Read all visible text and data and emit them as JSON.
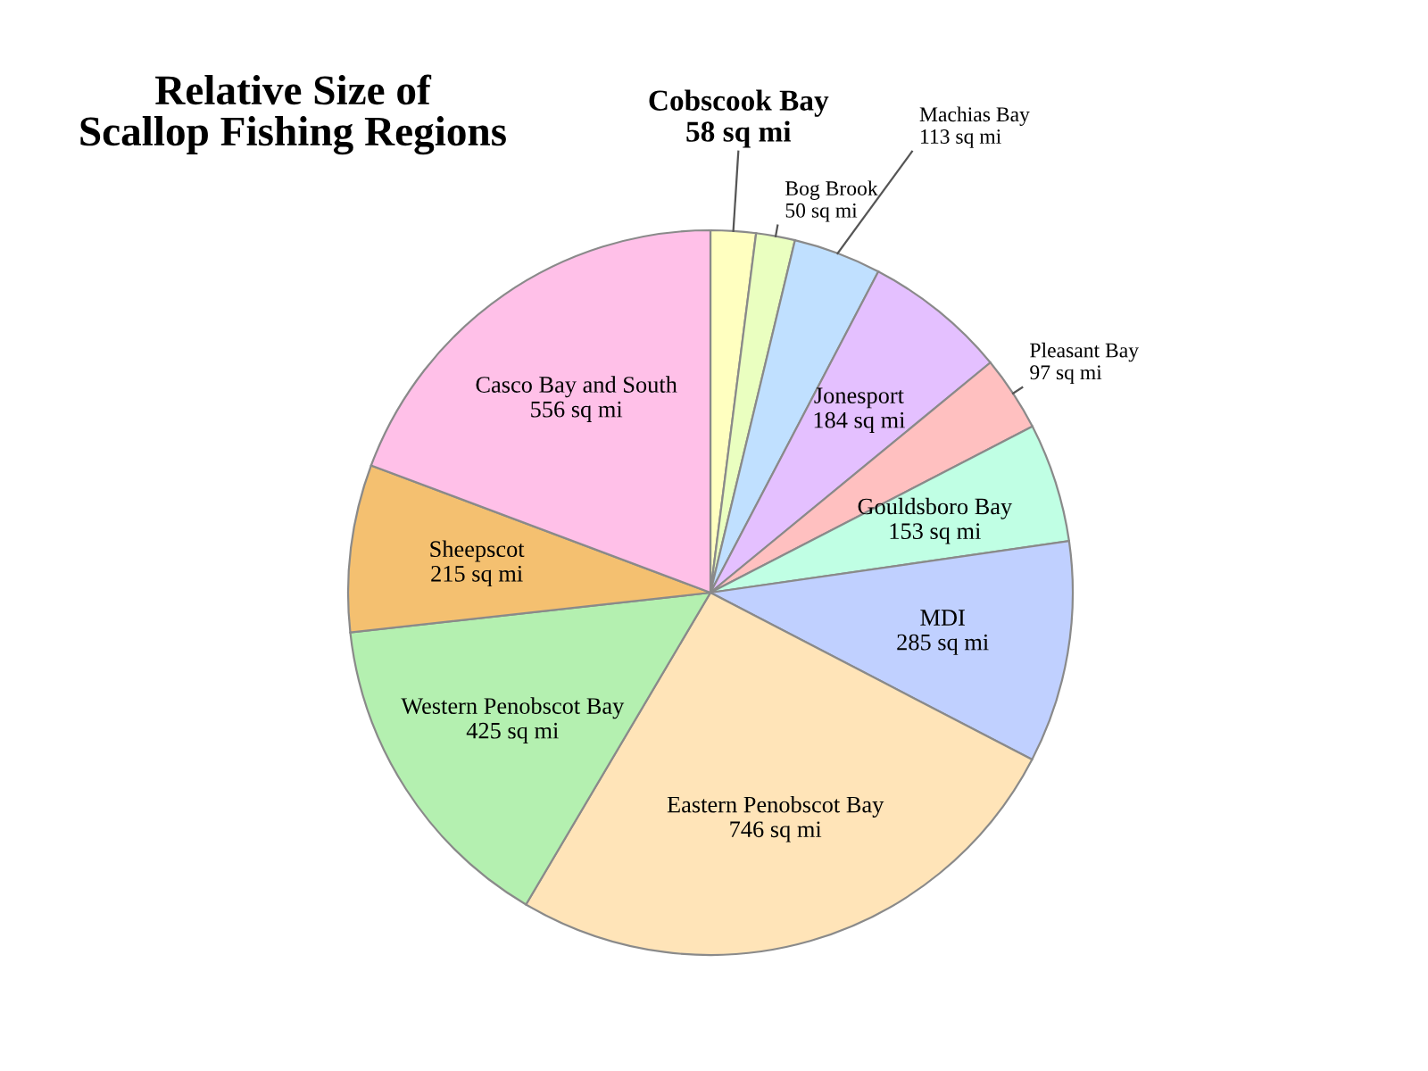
{
  "chart_data": {
    "type": "pie",
    "title": "Relative Size of\nScallop Fishing Regions",
    "categories": [
      "Cobscook Bay",
      "Bog Brook",
      "Machias Bay",
      "Jonesport",
      "Pleasant Bay",
      "Gouldsboro Bay",
      "MDI",
      "Eastern Penobscot Bay",
      "Western Penobscot Bay",
      "Sheepscot",
      "Casco Bay and South"
    ],
    "values": [
      58,
      50,
      113,
      184,
      97,
      153,
      285,
      746,
      425,
      215,
      556
    ],
    "value_labels": [
      "58 sq mi",
      "50 sq mi",
      "113 sq mi",
      "184 sq mi",
      "97 sq mi",
      "153 sq mi",
      "285 sq mi",
      "746 sq mi",
      "425 sq mi",
      "215 sq mi",
      "556 sq mi"
    ],
    "colors": [
      "#ffffc0",
      "#eaffc0",
      "#c0e0ff",
      "#e4c0ff",
      "#ffc0c0",
      "#c0ffe4",
      "#c0d0ff",
      "#ffe4b8",
      "#b4f0b0",
      "#f4c070",
      "#ffc0e8"
    ],
    "legend": false
  }
}
